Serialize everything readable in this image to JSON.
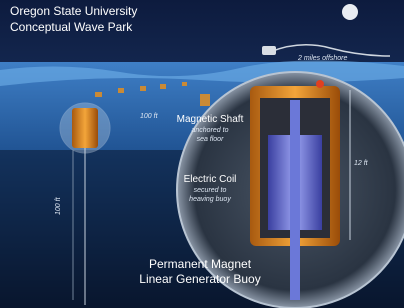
{
  "header": {
    "title": [
      "Oregon State University",
      "Conceptual Wave Park"
    ]
  },
  "labels": {
    "offshore": "2 miles offshore",
    "spacing": "100 ft",
    "depth": "100 ft",
    "height": "12 ft"
  },
  "callouts": [
    {
      "title": "Magnetic Shaft",
      "detail": [
        "anchored to",
        "sea floor"
      ]
    },
    {
      "title": "Electric Coil",
      "detail": [
        "secured to",
        "heaving buoy"
      ]
    }
  ],
  "caption": [
    "Permanent Magnet",
    "Linear Generator Buoy"
  ]
}
